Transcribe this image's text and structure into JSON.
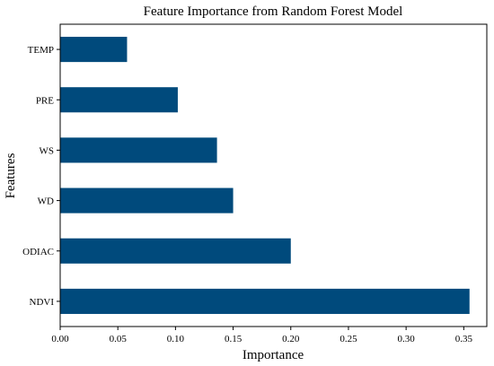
{
  "chart_data": {
    "type": "bar",
    "orientation": "horizontal",
    "title": "Feature Importance from Random Forest Model",
    "xlabel": "Importance",
    "ylabel": "Features",
    "categories": [
      "TEMP",
      "PRE",
      "WS",
      "WD",
      "ODIAC",
      "NDVI"
    ],
    "values": [
      0.058,
      0.102,
      0.136,
      0.15,
      0.2,
      0.355
    ],
    "xlim": [
      0,
      0.37
    ],
    "xticks": [
      0.0,
      0.05,
      0.1,
      0.15,
      0.2,
      0.25,
      0.3,
      0.35
    ],
    "xtick_labels": [
      "0.00",
      "0.05",
      "0.10",
      "0.15",
      "0.20",
      "0.25",
      "0.30",
      "0.35"
    ],
    "bar_color": "#004a7c",
    "grid": false,
    "legend": "none"
  }
}
